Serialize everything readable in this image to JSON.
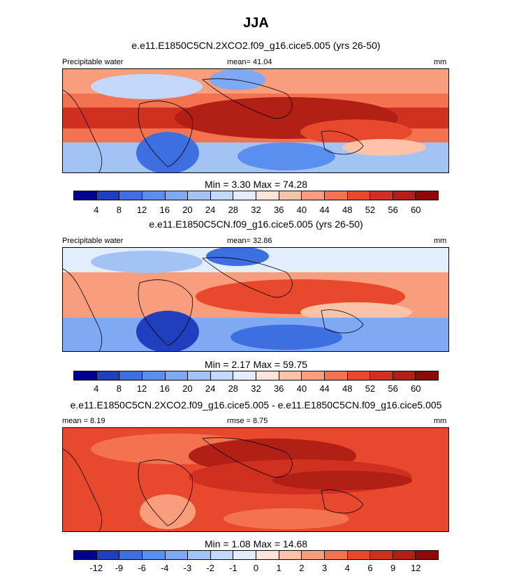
{
  "title": "JJA",
  "panels": [
    {
      "id": "p1",
      "title": "e.e11.E1850C5CN.2XCO2.f09_g16.cice5.005 (yrs 26-50)",
      "left_label": "Precipitable water",
      "center_label": "mean=  41.04",
      "right_label": "mm",
      "minmax": "Min =   3.30 Max =  74.28",
      "colorbar": {
        "colors": [
          "#00008f",
          "#1f3fbf",
          "#3d6fe0",
          "#5a8ff0",
          "#7fa9f2",
          "#a3c3f5",
          "#c3d8fa",
          "#e2edfd",
          "#fde4d6",
          "#fcc3a8",
          "#f89e7c",
          "#f3724f",
          "#e8482c",
          "#d0301f",
          "#b21f14",
          "#8c0b08"
        ],
        "ticks": [
          "4",
          "8",
          "12",
          "16",
          "20",
          "24",
          "28",
          "32",
          "36",
          "40",
          "44",
          "48",
          "52",
          "56",
          "60"
        ]
      }
    },
    {
      "id": "p2",
      "title": "e.e11.E1850C5CN.f09_g16.cice5.005 (yrs 26-50)",
      "left_label": "Precipitable water",
      "center_label": "mean=  32.86",
      "right_label": "mm",
      "minmax": "Min =   2.17 Max =  59.75",
      "colorbar": {
        "colors": [
          "#00008f",
          "#1f3fbf",
          "#3d6fe0",
          "#5a8ff0",
          "#7fa9f2",
          "#a3c3f5",
          "#c3d8fa",
          "#e2edfd",
          "#fde4d6",
          "#fcc3a8",
          "#f89e7c",
          "#f3724f",
          "#e8482c",
          "#d0301f",
          "#b21f14",
          "#8c0b08"
        ],
        "ticks": [
          "4",
          "8",
          "12",
          "16",
          "20",
          "24",
          "28",
          "32",
          "36",
          "40",
          "44",
          "48",
          "52",
          "56",
          "60"
        ]
      }
    },
    {
      "id": "p3",
      "title": "e.e11.E1850C5CN.2XCO2.f09_g16.cice5.005 - e.e11.E1850C5CN.f09_g16.cice5.005",
      "left_label": "mean =   8.19",
      "center_label": "rmse =   8.75",
      "right_label": "mm",
      "minmax": "Min =   1.08 Max =  14.68",
      "colorbar": {
        "colors": [
          "#00008f",
          "#1f3fbf",
          "#3d6fe0",
          "#5a8ff0",
          "#7fa9f2",
          "#a3c3f5",
          "#c3d8fa",
          "#e2edfd",
          "#fde4d6",
          "#fcc3a8",
          "#f89e7c",
          "#f3724f",
          "#e8482c",
          "#d0301f",
          "#b21f14",
          "#8c0b08"
        ],
        "ticks": [
          "-12",
          "-9",
          "-6",
          "-4",
          "-3",
          "-2",
          "-1",
          "0",
          "1",
          "2",
          "3",
          "4",
          "6",
          "9",
          "12"
        ]
      }
    }
  ],
  "chart_data": [
    {
      "type": "heatmap",
      "title": "e.e11.E1850C5CN.2XCO2.f09_g16.cice5.005 (yrs 26-50)",
      "variable": "Precipitable water",
      "units": "mm",
      "mean": 41.04,
      "min": 3.3,
      "max": 74.28,
      "contour_levels": [
        4,
        8,
        12,
        16,
        20,
        24,
        28,
        32,
        36,
        40,
        44,
        48,
        52,
        56,
        60
      ]
    },
    {
      "type": "heatmap",
      "title": "e.e11.E1850C5CN.f09_g16.cice5.005 (yrs 26-50)",
      "variable": "Precipitable water",
      "units": "mm",
      "mean": 32.86,
      "min": 2.17,
      "max": 59.75,
      "contour_levels": [
        4,
        8,
        12,
        16,
        20,
        24,
        28,
        32,
        36,
        40,
        44,
        48,
        52,
        56,
        60
      ]
    },
    {
      "type": "heatmap",
      "title": "e.e11.E1850C5CN.2XCO2.f09_g16.cice5.005 - e.e11.E1850C5CN.f09_g16.cice5.005",
      "units": "mm",
      "mean": 8.19,
      "rmse": 8.75,
      "min": 1.08,
      "max": 14.68,
      "contour_levels": [
        -12,
        -9,
        -6,
        -4,
        -3,
        -2,
        -1,
        0,
        1,
        2,
        3,
        4,
        6,
        9,
        12
      ]
    }
  ]
}
